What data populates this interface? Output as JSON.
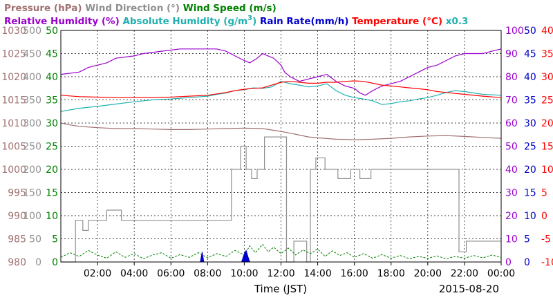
{
  "chart_data": {
    "type": "line",
    "date_label": "2015-08-20",
    "xlabel": "Time (JST)",
    "x_ticks": [
      "02:00",
      "04:00",
      "06:00",
      "08:00",
      "10:00",
      "12:00",
      "14:00",
      "16:00",
      "18:00",
      "20:00",
      "22:00",
      "00:00"
    ],
    "xlim_hours": [
      0,
      24
    ],
    "grid": true,
    "legend_placement": "top",
    "legend_rows": [
      [
        {
          "text": "Pressure (hPa)",
          "color": "#a07070"
        },
        {
          "text": "Wind Direction (°)",
          "color": "#909090"
        },
        {
          "text": "Wind Speed (m/s)",
          "color": "#008000"
        }
      ],
      [
        {
          "text": "Relative Humidity (%)",
          "color": "#9900cc"
        },
        {
          "text": "Absolute Humidity (g/m",
          "sup": "3",
          "suffix": ")",
          "color": "#20b0b0"
        },
        {
          "text": "Rain Rate(mm/h)",
          "color": "#0000cc"
        },
        {
          "text": "Temperature (°C)",
          "color": "#ff0000"
        },
        {
          "text": "x0.3",
          "color": "#20b0b0"
        }
      ]
    ],
    "axes": [
      {
        "name": "pressure",
        "side": "left",
        "color": "#a07070",
        "min": 980,
        "max": 1030,
        "ticks": [
          "980",
          "985",
          "990",
          "995",
          "1000",
          "1005",
          "1010",
          "1015",
          "1020",
          "1025",
          "1030"
        ]
      },
      {
        "name": "wind-direction",
        "side": "left",
        "color": "#909090",
        "min": 0,
        "max": 500,
        "ticks": [
          "0",
          "50",
          "100",
          "150",
          "200",
          "250",
          "300",
          "350",
          "400",
          "450",
          "500"
        ]
      },
      {
        "name": "wind-speed",
        "side": "left",
        "color": "#008000",
        "min": 0,
        "max": 50,
        "ticks": [
          "0",
          "5",
          "10",
          "15",
          "20",
          "25",
          "30",
          "35",
          "40",
          "45",
          "50"
        ]
      },
      {
        "name": "relative-humidity",
        "side": "right",
        "color": "#9900cc",
        "min": 0,
        "max": 100,
        "ticks": [
          "0",
          "10",
          "20",
          "30",
          "40",
          "50",
          "60",
          "70",
          "80",
          "90",
          "100"
        ]
      },
      {
        "name": "rain-rate",
        "side": "right",
        "color": "#0000cc",
        "min": 0,
        "max": 50,
        "ticks": [
          "0",
          "5",
          "10",
          "15",
          "20",
          "25",
          "30",
          "35",
          "40",
          "45",
          "50"
        ]
      },
      {
        "name": "temperature",
        "side": "right",
        "color": "#ff0000",
        "min": -10,
        "max": 40,
        "ticks": [
          "-10",
          "-5",
          "0",
          "5",
          "10",
          "15",
          "20",
          "25",
          "30",
          "35",
          "40"
        ]
      }
    ],
    "series": [
      {
        "name": "Relative Humidity (%)",
        "axis": "relative-humidity",
        "color": "#9900cc",
        "points": [
          [
            0.0,
            81
          ],
          [
            1.0,
            82
          ],
          [
            1.5,
            84
          ],
          [
            2.5,
            86
          ],
          [
            3.0,
            88
          ],
          [
            4.0,
            89
          ],
          [
            4.5,
            90
          ],
          [
            5.5,
            91
          ],
          [
            6.5,
            92
          ],
          [
            7.0,
            92
          ],
          [
            8.5,
            92
          ],
          [
            9.0,
            91
          ],
          [
            9.5,
            89
          ],
          [
            10.0,
            87
          ],
          [
            10.3,
            86
          ],
          [
            10.7,
            88
          ],
          [
            11.0,
            90
          ],
          [
            11.3,
            89
          ],
          [
            11.6,
            88
          ],
          [
            12.0,
            85
          ],
          [
            12.2,
            82
          ],
          [
            12.5,
            80
          ],
          [
            13.0,
            78
          ],
          [
            13.5,
            79
          ],
          [
            14.0,
            80
          ],
          [
            14.5,
            81
          ],
          [
            15.0,
            78
          ],
          [
            15.5,
            76
          ],
          [
            16.0,
            75
          ],
          [
            16.3,
            73
          ],
          [
            16.6,
            72
          ],
          [
            17.0,
            74
          ],
          [
            17.5,
            76
          ],
          [
            18.0,
            77
          ],
          [
            18.5,
            78
          ],
          [
            19.0,
            80
          ],
          [
            19.5,
            82
          ],
          [
            20.0,
            84
          ],
          [
            20.5,
            85
          ],
          [
            21.0,
            87
          ],
          [
            21.5,
            89
          ],
          [
            22.0,
            90
          ],
          [
            22.5,
            90
          ],
          [
            23.0,
            90
          ],
          [
            23.5,
            91
          ],
          [
            24.0,
            92
          ]
        ]
      },
      {
        "name": "Absolute Humidity (g/m3) x0.3",
        "axis": "rain-rate",
        "color": "#20b0b0",
        "points": [
          [
            0.0,
            32.5
          ],
          [
            1.0,
            33.2
          ],
          [
            2.0,
            33.6
          ],
          [
            3.0,
            34.1
          ],
          [
            4.0,
            34.6
          ],
          [
            5.0,
            35.0
          ],
          [
            6.0,
            35.2
          ],
          [
            7.0,
            35.5
          ],
          [
            8.0,
            35.8
          ],
          [
            8.5,
            36.2
          ],
          [
            9.0,
            36.5
          ],
          [
            9.5,
            37.0
          ],
          [
            10.0,
            37.2
          ],
          [
            10.5,
            37.6
          ],
          [
            11.0,
            37.5
          ],
          [
            11.5,
            37.8
          ],
          [
            12.0,
            39.0
          ],
          [
            12.5,
            38.5
          ],
          [
            13.0,
            38.2
          ],
          [
            13.5,
            37.8
          ],
          [
            14.0,
            38.0
          ],
          [
            14.5,
            38.5
          ],
          [
            15.0,
            37.0
          ],
          [
            15.5,
            36.0
          ],
          [
            16.0,
            35.5
          ],
          [
            16.5,
            35.2
          ],
          [
            17.0,
            34.8
          ],
          [
            17.5,
            34.0
          ],
          [
            18.0,
            34.2
          ],
          [
            18.5,
            34.6
          ],
          [
            19.0,
            34.8
          ],
          [
            19.5,
            35.2
          ],
          [
            20.0,
            35.5
          ],
          [
            20.5,
            36.0
          ],
          [
            21.0,
            36.6
          ],
          [
            21.5,
            37.0
          ],
          [
            22.0,
            36.8
          ],
          [
            23.0,
            36.2
          ],
          [
            24.0,
            36.0
          ]
        ]
      },
      {
        "name": "Temperature (°C)",
        "axis": "temperature",
        "color": "#ff0000",
        "points": [
          [
            0.0,
            26.0
          ],
          [
            1.0,
            25.7
          ],
          [
            2.0,
            25.6
          ],
          [
            3.0,
            25.5
          ],
          [
            4.0,
            25.5
          ],
          [
            5.0,
            25.5
          ],
          [
            6.0,
            25.6
          ],
          [
            7.0,
            25.8
          ],
          [
            8.0,
            26.0
          ],
          [
            8.5,
            26.3
          ],
          [
            9.0,
            26.6
          ],
          [
            9.5,
            27.0
          ],
          [
            10.0,
            27.3
          ],
          [
            10.5,
            27.5
          ],
          [
            11.0,
            27.6
          ],
          [
            11.5,
            28.2
          ],
          [
            12.0,
            28.8
          ],
          [
            12.5,
            29.0
          ],
          [
            13.0,
            28.8
          ],
          [
            13.5,
            28.6
          ],
          [
            14.0,
            28.6
          ],
          [
            14.5,
            28.8
          ],
          [
            15.0,
            28.8
          ],
          [
            15.5,
            29.0
          ],
          [
            16.0,
            29.1
          ],
          [
            16.5,
            29.0
          ],
          [
            17.0,
            28.6
          ],
          [
            17.5,
            28.2
          ],
          [
            18.0,
            28.0
          ],
          [
            18.5,
            27.8
          ],
          [
            19.0,
            27.6
          ],
          [
            19.5,
            27.4
          ],
          [
            20.0,
            27.2
          ],
          [
            20.5,
            26.8
          ],
          [
            21.0,
            26.6
          ],
          [
            21.5,
            26.4
          ],
          [
            22.0,
            26.2
          ],
          [
            23.0,
            25.8
          ],
          [
            24.0,
            25.5
          ]
        ]
      },
      {
        "name": "Pressure (hPa)",
        "axis": "pressure",
        "color": "#a07070",
        "points": [
          [
            0.0,
            1010.0
          ],
          [
            0.5,
            1009.6
          ],
          [
            1.0,
            1009.3
          ],
          [
            2.0,
            1009.0
          ],
          [
            3.0,
            1008.8
          ],
          [
            4.0,
            1008.8
          ],
          [
            5.0,
            1008.7
          ],
          [
            6.0,
            1008.6
          ],
          [
            7.0,
            1008.6
          ],
          [
            8.0,
            1008.7
          ],
          [
            9.0,
            1008.8
          ],
          [
            10.0,
            1008.9
          ],
          [
            11.0,
            1008.8
          ],
          [
            11.5,
            1008.5
          ],
          [
            12.0,
            1008.2
          ],
          [
            12.5,
            1007.8
          ],
          [
            13.0,
            1007.4
          ],
          [
            13.5,
            1007.0
          ],
          [
            14.0,
            1006.8
          ],
          [
            15.0,
            1006.5
          ],
          [
            16.0,
            1006.4
          ],
          [
            17.0,
            1006.5
          ],
          [
            18.0,
            1006.7
          ],
          [
            19.0,
            1007.0
          ],
          [
            20.0,
            1007.2
          ],
          [
            21.0,
            1007.3
          ],
          [
            22.0,
            1007.1
          ],
          [
            23.0,
            1006.9
          ],
          [
            24.0,
            1006.7
          ]
        ]
      },
      {
        "name": "Wind Direction (°)",
        "axis": "wind-direction",
        "color": "#909090",
        "step": true,
        "points": [
          [
            0.0,
            0
          ],
          [
            0.8,
            0
          ],
          [
            0.8,
            90
          ],
          [
            1.2,
            90
          ],
          [
            1.2,
            68
          ],
          [
            1.5,
            68
          ],
          [
            1.5,
            90
          ],
          [
            2.5,
            90
          ],
          [
            2.5,
            112
          ],
          [
            3.3,
            112
          ],
          [
            3.3,
            90
          ],
          [
            9.3,
            90
          ],
          [
            9.3,
            200
          ],
          [
            9.8,
            200
          ],
          [
            9.8,
            250
          ],
          [
            10.1,
            250
          ],
          [
            10.1,
            200
          ],
          [
            10.4,
            200
          ],
          [
            10.4,
            180
          ],
          [
            10.7,
            180
          ],
          [
            10.7,
            200
          ],
          [
            11.1,
            200
          ],
          [
            11.1,
            270
          ],
          [
            12.3,
            270
          ],
          [
            12.3,
            0
          ],
          [
            12.7,
            0
          ],
          [
            12.7,
            45
          ],
          [
            13.4,
            45
          ],
          [
            13.4,
            0
          ],
          [
            13.6,
            0
          ],
          [
            13.6,
            200
          ],
          [
            13.9,
            200
          ],
          [
            13.9,
            225
          ],
          [
            14.4,
            225
          ],
          [
            14.4,
            200
          ],
          [
            15.1,
            200
          ],
          [
            15.1,
            180
          ],
          [
            15.8,
            180
          ],
          [
            15.8,
            200
          ],
          [
            16.3,
            200
          ],
          [
            16.3,
            180
          ],
          [
            16.9,
            180
          ],
          [
            16.9,
            200
          ],
          [
            21.7,
            200
          ],
          [
            21.7,
            22
          ],
          [
            22.1,
            22
          ],
          [
            22.1,
            45
          ],
          [
            24.0,
            45
          ]
        ]
      },
      {
        "name": "Wind Speed (m/s)",
        "axis": "wind-speed",
        "color": "#008000",
        "dashed": true,
        "points": [
          [
            0.0,
            1.0
          ],
          [
            0.5,
            2.0
          ],
          [
            1.0,
            1.2
          ],
          [
            1.5,
            2.5
          ],
          [
            2.0,
            1.5
          ],
          [
            2.5,
            0.8
          ],
          [
            3.0,
            2.2
          ],
          [
            3.5,
            1.0
          ],
          [
            4.0,
            1.8
          ],
          [
            4.5,
            0.7
          ],
          [
            5.0,
            1.5
          ],
          [
            5.5,
            2.0
          ],
          [
            6.0,
            0.8
          ],
          [
            6.5,
            1.6
          ],
          [
            7.0,
            1.0
          ],
          [
            7.5,
            2.0
          ],
          [
            8.0,
            0.9
          ],
          [
            8.5,
            1.8
          ],
          [
            9.0,
            1.2
          ],
          [
            9.5,
            2.5
          ],
          [
            10.0,
            1.5
          ],
          [
            10.3,
            3.5
          ],
          [
            10.6,
            2.0
          ],
          [
            11.0,
            3.8
          ],
          [
            11.3,
            2.2
          ],
          [
            11.6,
            3.2
          ],
          [
            12.0,
            1.8
          ],
          [
            12.4,
            3.0
          ],
          [
            12.8,
            1.5
          ],
          [
            13.2,
            2.6
          ],
          [
            13.6,
            1.8
          ],
          [
            14.0,
            2.8
          ],
          [
            14.4,
            1.2
          ],
          [
            14.8,
            2.4
          ],
          [
            15.2,
            1.4
          ],
          [
            15.6,
            2.0
          ],
          [
            16.0,
            1.0
          ],
          [
            16.5,
            1.8
          ],
          [
            17.0,
            0.8
          ],
          [
            17.5,
            1.6
          ],
          [
            18.0,
            0.8
          ],
          [
            18.5,
            1.4
          ],
          [
            19.0,
            0.7
          ],
          [
            19.5,
            1.2
          ],
          [
            20.0,
            0.8
          ],
          [
            20.5,
            1.3
          ],
          [
            21.0,
            0.7
          ],
          [
            21.5,
            1.2
          ],
          [
            22.0,
            0.8
          ],
          [
            22.5,
            1.4
          ],
          [
            23.0,
            0.9
          ],
          [
            23.5,
            1.5
          ],
          [
            24.0,
            1.0
          ]
        ]
      },
      {
        "name": "Rain Rate(mm/h)",
        "axis": "rain-rate",
        "color": "#0000cc",
        "area": true,
        "points": [
          [
            7.6,
            0
          ],
          [
            7.7,
            2.2
          ],
          [
            7.8,
            0
          ],
          [
            9.85,
            0
          ],
          [
            10.0,
            1.8
          ],
          [
            10.1,
            2.5
          ],
          [
            10.2,
            1.2
          ],
          [
            10.3,
            0
          ]
        ]
      }
    ]
  }
}
